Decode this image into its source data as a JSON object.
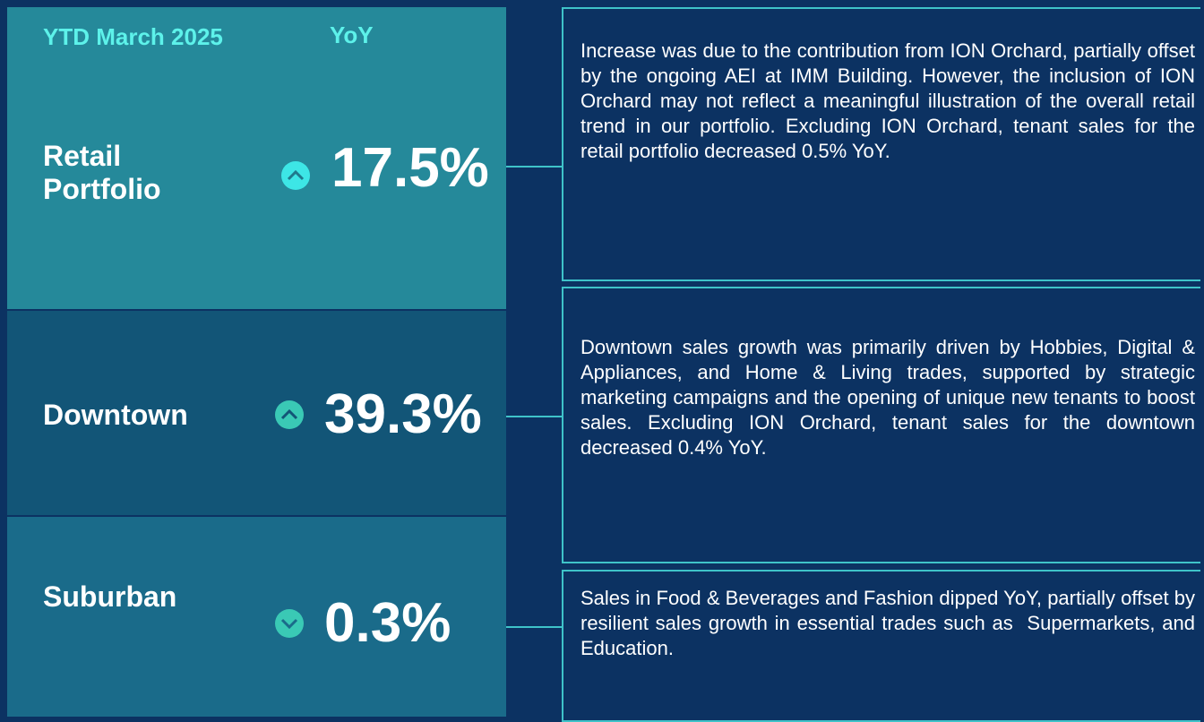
{
  "header": {
    "period": "YTD March 2025",
    "metric": "YoY"
  },
  "rows": [
    {
      "label": "Retail Portfolio",
      "value": "17.5%",
      "commentary": "Increase was due to the contribution from ION Orchard, partially offset by the ongoing AEI at IMM Building. However, the inclusion of ION Orchard may not reflect a meaningful illustration of the overall retail trend in our portfolio. Excluding ION Orchard, tenant sales for the retail portfolio decreased 0.5% YoY."
    },
    {
      "label": "Downtown",
      "value": "39.3%",
      "commentary": "Downtown sales growth was primarily driven by Hobbies, Digital & Appliances, and Home & Living trades, supported by strategic marketing campaigns and the opening of unique new tenants to boost sales. Excluding ION Orchard, tenant sales for the downtown decreased 0.4% YoY."
    },
    {
      "label": "Suburban",
      "value": "0.3%",
      "commentary": "Sales in Food & Beverages and Fashion dipped YoY, partially offset by resilient sales growth in essential trades such as  Supermarkets, and Education."
    }
  ]
}
